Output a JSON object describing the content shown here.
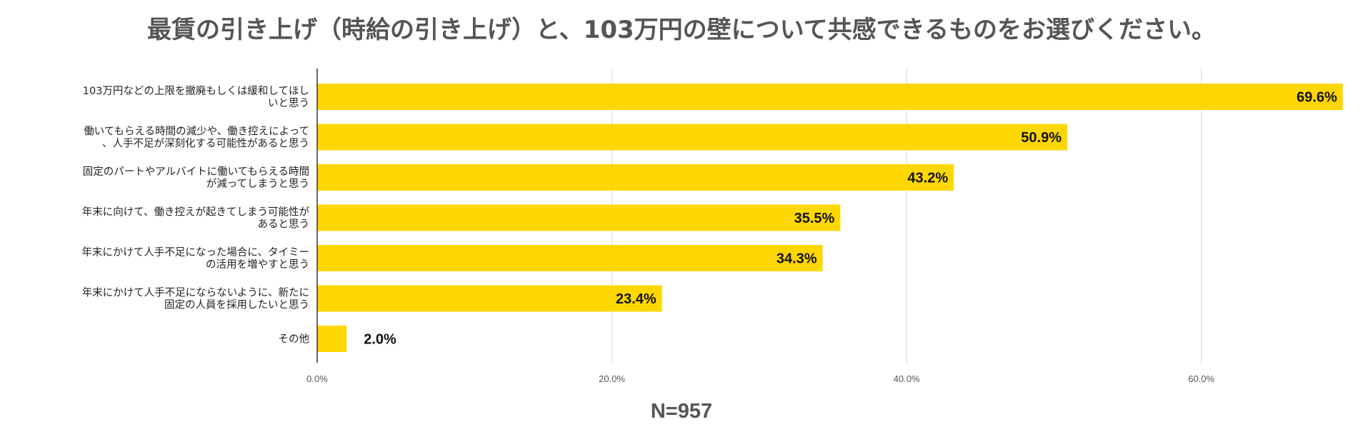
{
  "header": {
    "title": "最賃の引き上げ（時給の引き上げ）と、103万円の壁について共感できるものをお選びください。"
  },
  "footer": {
    "sample_size": "N=957"
  },
  "chart_data": {
    "type": "bar",
    "orientation": "horizontal",
    "title": "最賃の引き上げ（時給の引き上げ）と、103万円の壁について共感できるものをお選びください。",
    "categories": [
      [
        "103万円などの上限を撤廃もしくは緩和してほし",
        "いと思う"
      ],
      [
        "働いてもらえる時間の減少や、働き控えによって",
        "、人手不足が深刻化する可能性があると思う"
      ],
      [
        "固定のパートやアルバイトに働いてもらえる時間",
        "が減ってしまうと思う"
      ],
      [
        "年末に向けて、働き控えが起きてしまう可能性が",
        "あると思う"
      ],
      [
        "年末にかけて人手不足になった場合に、タイミー",
        "の活用を増やすと思う"
      ],
      [
        "年末にかけて人手不足にならないように、新たに",
        "固定の人員を採用したいと思う"
      ],
      [
        "その他"
      ]
    ],
    "values": [
      69.6,
      50.9,
      43.2,
      35.5,
      34.3,
      23.4,
      2.0
    ],
    "value_labels": [
      "69.6%",
      "50.9%",
      "43.2%",
      "35.5%",
      "34.3%",
      "23.4%",
      "2.0%"
    ],
    "xlim": [
      0,
      70
    ],
    "xticks": [
      0,
      20,
      40,
      60
    ],
    "xtick_labels": [
      "0.0%",
      "20.0%",
      "40.0%",
      "60.0%"
    ],
    "xlabel": "",
    "ylabel": "",
    "grid": true,
    "legend": "none",
    "colors": {
      "bar": "#FFD700",
      "grid": "#d9d9d9",
      "axis": "#333333"
    }
  }
}
